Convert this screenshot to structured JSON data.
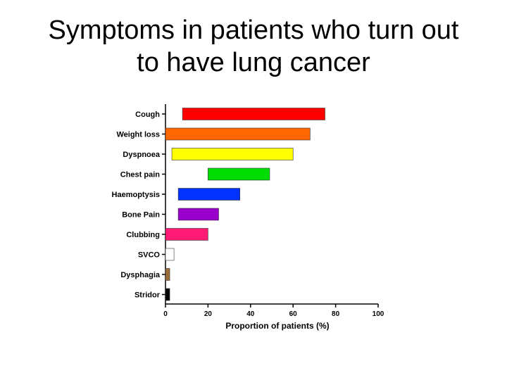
{
  "slide": {
    "title_line1": "Symptoms in patients who turn out",
    "title_line2": "to have lung cancer"
  },
  "chart_data": {
    "type": "bar",
    "orientation": "horizontal",
    "xlabel": "Proportion of patients (%)",
    "ylabel": "",
    "xlim": [
      0,
      100
    ],
    "xticks": [
      0,
      20,
      40,
      60,
      80,
      100
    ],
    "grid": false,
    "categories": [
      "Cough",
      "Weight loss",
      "Dyspnoea",
      "Chest pain",
      "Haemoptysis",
      "Bone Pain",
      "Clubbing",
      "SVCO",
      "Dysphagia",
      "Stridor"
    ],
    "ranges": [
      [
        8,
        75
      ],
      [
        0,
        68
      ],
      [
        3,
        60
      ],
      [
        20,
        49
      ],
      [
        6,
        35
      ],
      [
        6,
        25
      ],
      [
        0,
        20
      ],
      [
        0,
        4
      ],
      [
        0,
        2
      ],
      [
        0,
        2
      ]
    ],
    "colors": [
      "#ff0000",
      "#ff6600",
      "#ffff00",
      "#00dd00",
      "#0033ff",
      "#9900cc",
      "#ff1a75",
      "#ffffff",
      "#9b6b38",
      "#000000"
    ]
  }
}
